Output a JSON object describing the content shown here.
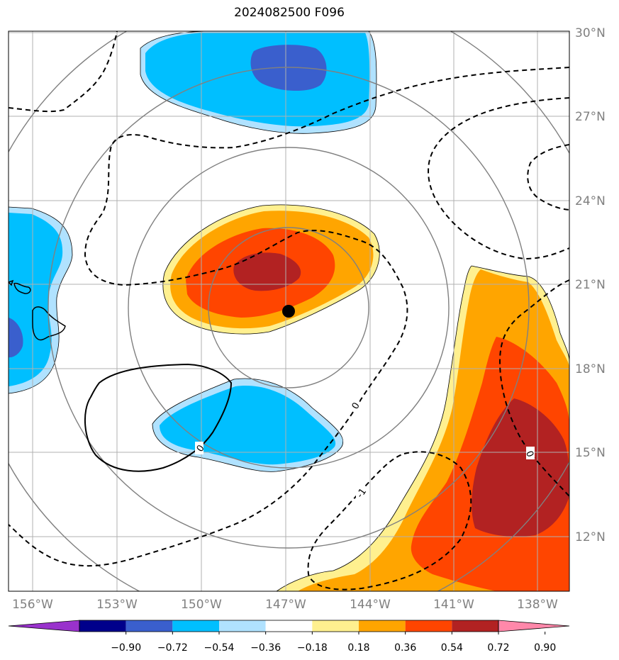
{
  "title": "2024082500 F096",
  "lon_labels": [
    "156°W",
    "153°W",
    "150°W",
    "147°W",
    "144°W",
    "141°W",
    "138°W"
  ],
  "lat_labels": [
    "30°N",
    "27°N",
    "24°N",
    "21°N",
    "18°N",
    "15°N",
    "12°N"
  ],
  "storm_center": {
    "lat": 20.0,
    "lon": -147.0
  },
  "contour_labels": {
    "zero_a": "0",
    "zero_b": "0",
    "zero_c": "0",
    "neg_one": "-1"
  },
  "colorbar": {
    "labels": [
      "−0.90",
      "−0.72",
      "−0.54",
      "−0.36",
      "−0.18",
      "0.18",
      "0.36",
      "0.54",
      "0.72",
      "0.90"
    ],
    "colors": [
      "#9932cc",
      "#00008b",
      "#3a5fcd",
      "#00bfff",
      "#b0e2ff",
      "#ffffff",
      "#fff08f",
      "#ffa500",
      "#ff4500",
      "#b22222",
      "#ff88aa"
    ]
  },
  "colors": {
    "light_blue": "#b0e2ff",
    "sky_blue": "#00bfff",
    "royal_blue": "#3a5fcd",
    "light_yellow": "#fff08f",
    "orange": "#ffa500",
    "red_orange": "#ff4500",
    "dark_red": "#b22222"
  }
}
